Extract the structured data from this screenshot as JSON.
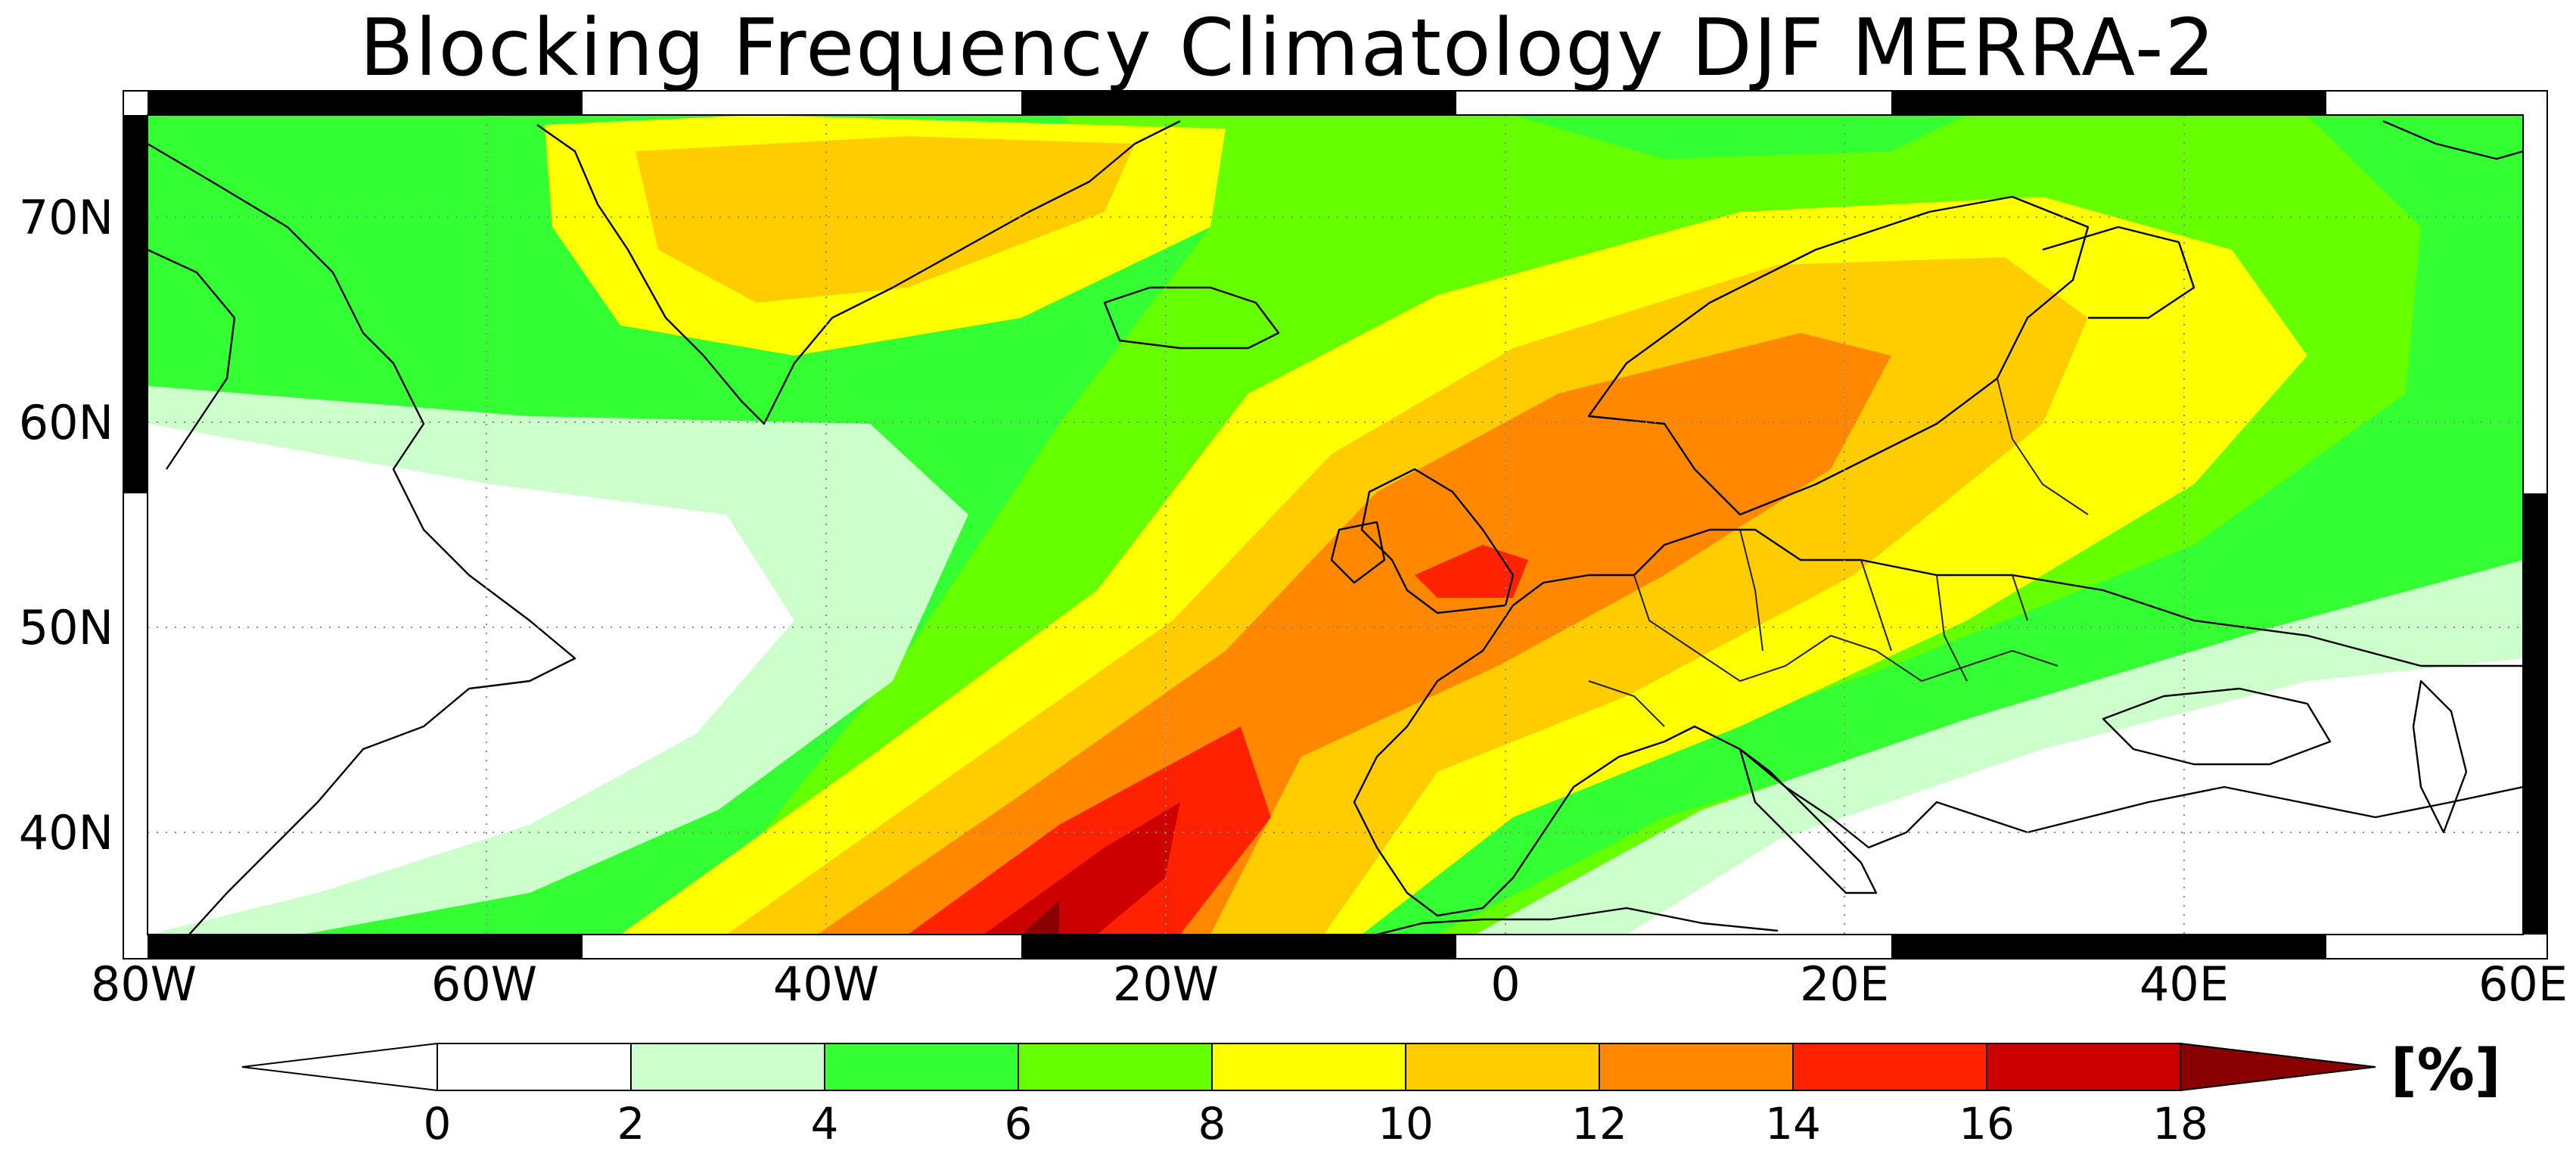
{
  "title": "Blocking Frequency Climatology DJF MERRA-2",
  "unit_label": "[%]",
  "map": {
    "projection": "cylindrical equidistant",
    "lon_range": [
      -80,
      60
    ],
    "lat_range": [
      35,
      75
    ],
    "lon_ticks": [
      "80W",
      "60W",
      "40W",
      "20W",
      "0",
      "20E",
      "40E",
      "60E"
    ],
    "lat_ticks": [
      "70N",
      "60N",
      "50N",
      "40N"
    ],
    "gridlines": "dotted"
  },
  "colorbar": {
    "levels": [
      "0",
      "2",
      "4",
      "6",
      "8",
      "10",
      "12",
      "14",
      "16",
      "18"
    ],
    "colors": [
      "#ffffff",
      "#ccffcc",
      "#33ff33",
      "#66ff00",
      "#ffff00",
      "#ffcc00",
      "#ff8800",
      "#ff2200",
      "#cc0000",
      "#880000"
    ],
    "extend": "both"
  }
}
